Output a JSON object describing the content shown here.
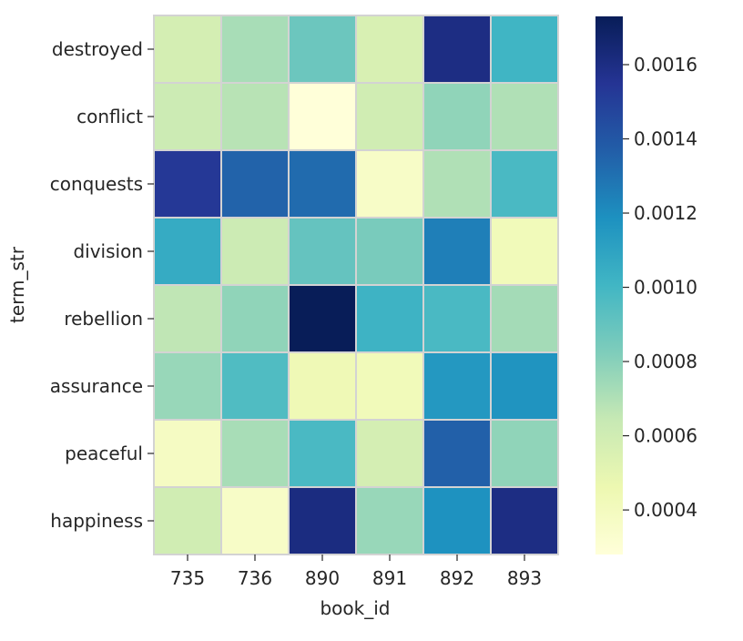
{
  "chart_data": {
    "type": "heatmap",
    "xlabel": "book_id",
    "ylabel": "term_str",
    "x_categories": [
      "735",
      "736",
      "890",
      "891",
      "892",
      "893"
    ],
    "y_categories": [
      "destroyed",
      "conflict",
      "conquests",
      "division",
      "rebellion",
      "assurance",
      "peaceful",
      "happiness"
    ],
    "values": [
      [
        0.00058,
        0.00072,
        0.00088,
        0.00056,
        0.0016,
        0.00101
      ],
      [
        0.00062,
        0.00068,
        0.00028,
        0.0006,
        0.00078,
        0.0007
      ],
      [
        0.00153,
        0.00135,
        0.00132,
        0.00036,
        0.0007,
        0.00098
      ],
      [
        0.00106,
        0.00062,
        0.0009,
        0.00084,
        0.00125,
        0.00042
      ],
      [
        0.00066,
        0.00078,
        0.00173,
        0.00102,
        0.00098,
        0.00073
      ],
      [
        0.00076,
        0.00096,
        0.00044,
        0.00042,
        0.00115,
        0.00117
      ],
      [
        0.00038,
        0.00072,
        0.00098,
        0.00058,
        0.00136,
        0.00078
      ],
      [
        0.0006,
        0.00036,
        0.00161,
        0.00076,
        0.00118,
        0.0016
      ]
    ],
    "colorscale": {
      "name": "YlGnBu",
      "vmin": 0.00028,
      "vmax": 0.00173,
      "stops": [
        "#ffffd9",
        "#edf8b1",
        "#c7e9b4",
        "#7fcdbb",
        "#41b6c4",
        "#1d91c0",
        "#225ea8",
        "#253494",
        "#081d58"
      ]
    },
    "colorbar_ticks": [
      "0.0004",
      "0.0006",
      "0.0008",
      "0.0010",
      "0.0012",
      "0.0014",
      "0.0016"
    ],
    "cell_border_color": "#d3d3d3"
  }
}
